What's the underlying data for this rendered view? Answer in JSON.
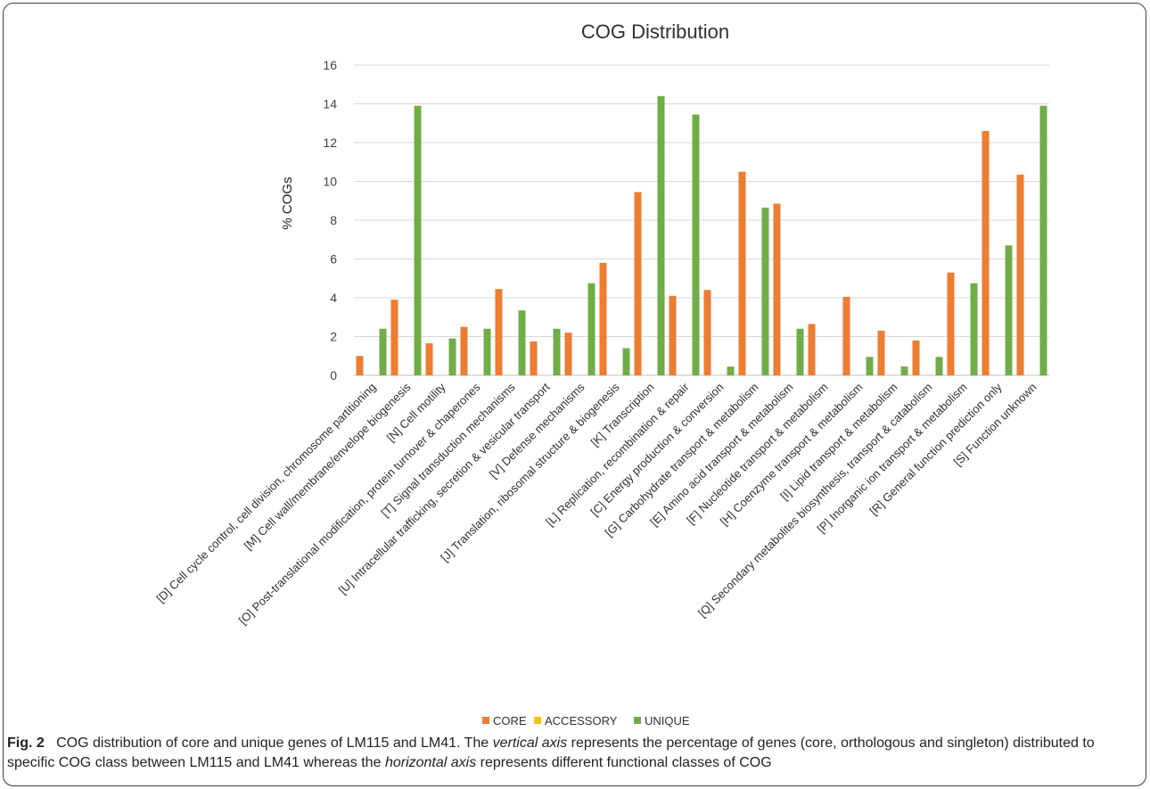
{
  "chart_data": {
    "type": "bar",
    "title": "COG Distribution",
    "ylabel": "% COGs",
    "xlabel": "",
    "ylim": [
      0,
      16
    ],
    "yticks": [
      0,
      2,
      4,
      6,
      8,
      10,
      12,
      14,
      16
    ],
    "grid": true,
    "legend_position": "bottom",
    "categories": [
      "[D] Cell cycle control, cell division, chromosome partitioning",
      "[M] Cell wall/membrane/envelope biogenesis",
      "[N] Cell motility",
      "[O] Post-translational modification, protein turnover & chaperones",
      "[T] Signal transduction mechanisms",
      "[U] Intracellular trafficking, secretion & vesicular transport",
      "[V] Defense mechanisms",
      "[J] Translation, ribosomal structure & biogenesis",
      "[K] Transcription",
      "[L] Replication, recombination & repair",
      "[C] Energy production & conversion",
      "[G] Carbohydrate transport & metabolism",
      "[E] Amino acid transport & metabolism",
      "[F] Nucleotide transport & metabolism",
      "[H] Coenzyme transport & metabolism",
      "[I] Lipid transport & metabolism",
      "[Q] Secondary metabolites biosynthesis, transport & catabolism",
      "[P] Inorganic ion transport & metabolism",
      "[R] General function prediction only",
      "[S] Function unknown"
    ],
    "series": [
      {
        "name": "CORE",
        "color": "#ED7D31",
        "values": [
          1.0,
          3.9,
          1.65,
          2.5,
          4.45,
          1.75,
          2.2,
          5.8,
          9.45,
          4.1,
          4.4,
          10.5,
          8.85,
          2.65,
          4.05,
          2.3,
          1.8,
          5.3,
          12.6,
          10.35
        ]
      },
      {
        "name": "ACCESSORY",
        "color": "#FFC000",
        "values": [
          0,
          0,
          0,
          0,
          0,
          0,
          0,
          0,
          0,
          0,
          0,
          0,
          0,
          0,
          0,
          0,
          0,
          0,
          0,
          0
        ]
      },
      {
        "name": "UNIQUE",
        "color": "#70AD47",
        "values": [
          2.4,
          13.9,
          1.9,
          2.4,
          3.35,
          2.4,
          4.75,
          1.4,
          14.4,
          13.45,
          0.45,
          8.65,
          2.4,
          0,
          0.95,
          0.45,
          0.95,
          4.75,
          6.7,
          13.9
        ]
      }
    ]
  },
  "caption": {
    "fig_label": "Fig. 2",
    "text_1": "COG distribution of core and unique genes of LM115 and LM41. The",
    "em_1": "vertical axis",
    "text_2": "represents the percentage of genes (core, orthologous and singleton) distributed to specific COG class between LM115 and LM41 whereas the",
    "em_2": "horizontal axis",
    "text_3": "represents different functional classes of COG"
  }
}
